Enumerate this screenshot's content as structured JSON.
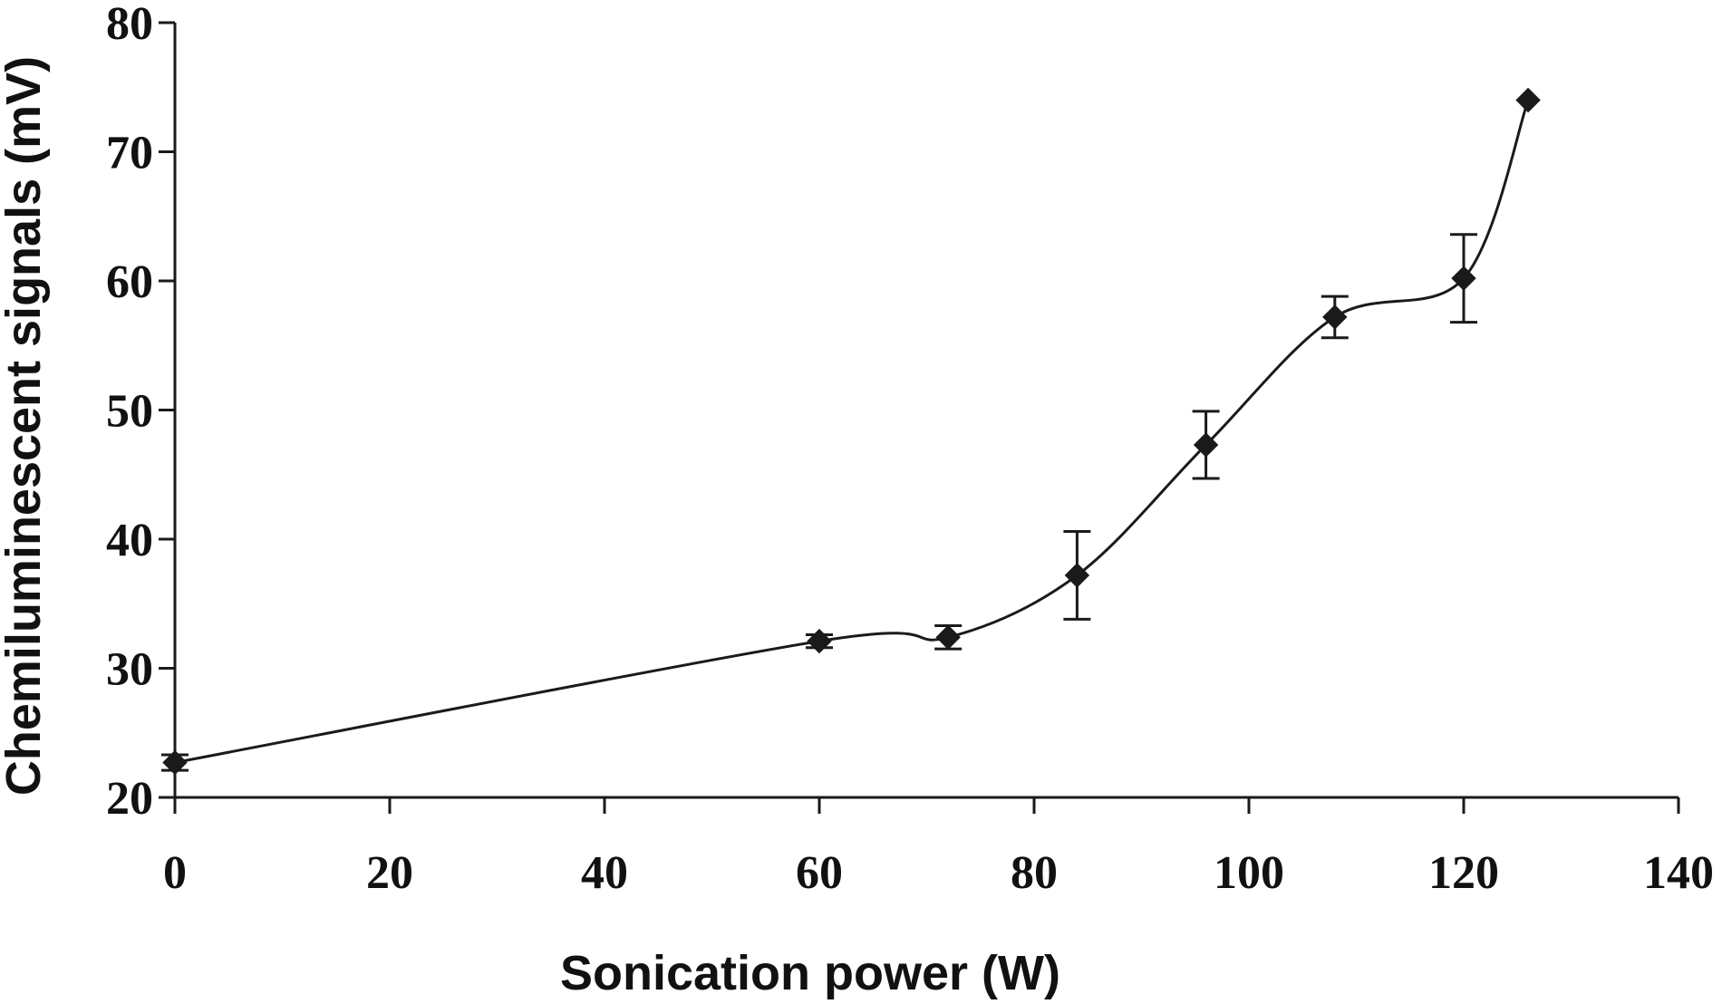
{
  "chart_data": {
    "type": "line",
    "title": "",
    "xlabel": "Sonication power (W)",
    "ylabel": "Chemiluminescent signals (mV)",
    "xlim": [
      0,
      140
    ],
    "ylim": [
      20,
      80
    ],
    "xticks": [
      0,
      20,
      40,
      60,
      80,
      100,
      120,
      140
    ],
    "yticks": [
      20,
      30,
      40,
      50,
      60,
      70,
      80
    ],
    "grid": false,
    "legend": "none",
    "marker": "diamond",
    "color": "#1a1a1a",
    "series": [
      {
        "name": "Chemiluminescent signals",
        "x": [
          0,
          60,
          72,
          84,
          96,
          108,
          120,
          126
        ],
        "y": [
          22.7,
          32.1,
          32.4,
          37.2,
          47.3,
          57.2,
          60.2,
          74
        ],
        "error": [
          0.6,
          0.5,
          0.9,
          3.4,
          2.6,
          1.6,
          3.4,
          0
        ]
      }
    ]
  }
}
